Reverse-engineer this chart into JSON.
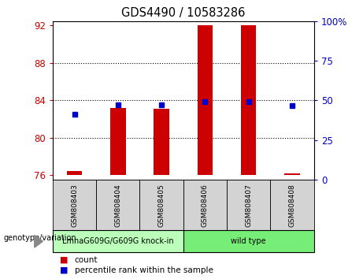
{
  "title": "GDS4490 / 10583286",
  "samples": [
    "GSM808403",
    "GSM808404",
    "GSM808405",
    "GSM808406",
    "GSM808407",
    "GSM808408"
  ],
  "bar_bottoms": [
    76,
    76,
    76,
    76,
    76,
    76
  ],
  "bar_tops": [
    76.45,
    83.2,
    83.1,
    92.0,
    92.0,
    76.2
  ],
  "blue_dot_y": [
    82.5,
    83.55,
    83.55,
    83.85,
    83.85,
    83.45
  ],
  "bar_color": "#cc0000",
  "dot_color": "#0000cc",
  "ylim_left": [
    75.5,
    92.5
  ],
  "yticks_left": [
    76,
    80,
    84,
    88,
    92
  ],
  "ylim_right": [
    0,
    100
  ],
  "yticks_right": [
    0,
    25,
    50,
    75,
    100
  ],
  "yticklabels_right": [
    "0",
    "25",
    "50",
    "75",
    "100%"
  ],
  "groups": [
    {
      "label": "LmnaG609G/G609G knock-in",
      "samples": [
        0,
        1,
        2
      ],
      "color": "#bbffbb"
    },
    {
      "label": "wild type",
      "samples": [
        3,
        4,
        5
      ],
      "color": "#77ee77"
    }
  ],
  "genotype_label": "genotype/variation",
  "legend_count_label": "count",
  "legend_percentile_label": "percentile rank within the sample",
  "left_tick_color": "#cc0000",
  "right_tick_color": "#0000cc",
  "grid_yticks": [
    80,
    84,
    88
  ],
  "bar_width": 0.35
}
